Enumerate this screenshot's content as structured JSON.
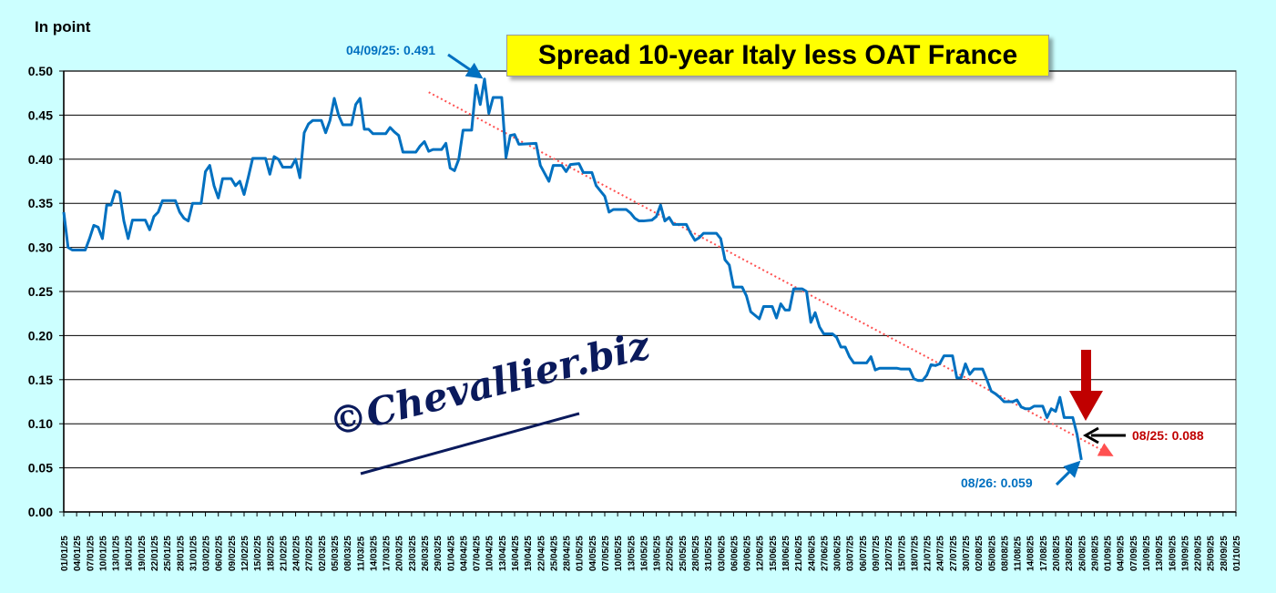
{
  "chart_data": {
    "type": "line",
    "title": "Spread 10-year Italy less OAT France",
    "ylabel": "In point",
    "xlabel": "",
    "ylim": [
      0,
      0.5
    ],
    "yticks": [
      "0.00",
      "0.05",
      "0.10",
      "0.15",
      "0.20",
      "0.25",
      "0.30",
      "0.35",
      "0.40",
      "0.45",
      "0.50"
    ],
    "x_unit": "days since 01/01/25",
    "xlim": [
      0,
      273
    ],
    "grid": true,
    "xtick_labels": [
      "01/01/25",
      "04/01/25",
      "07/01/25",
      "10/01/25",
      "13/01/25",
      "16/01/25",
      "19/01/25",
      "22/01/25",
      "25/01/25",
      "28/01/25",
      "31/01/25",
      "03/02/25",
      "06/02/25",
      "09/02/25",
      "12/02/25",
      "15/02/25",
      "18/02/25",
      "21/02/25",
      "24/02/25",
      "27/02/25",
      "02/03/25",
      "05/03/25",
      "08/03/25",
      "11/03/25",
      "14/03/25",
      "17/03/25",
      "20/03/25",
      "23/03/25",
      "26/03/25",
      "29/03/25",
      "01/04/25",
      "04/04/25",
      "07/04/25",
      "10/04/25",
      "13/04/25",
      "16/04/25",
      "19/04/25",
      "22/04/25",
      "25/04/25",
      "28/04/25",
      "01/05/25",
      "04/05/25",
      "07/05/25",
      "10/05/25",
      "13/05/25",
      "16/05/25",
      "19/05/25",
      "22/05/25",
      "25/05/25",
      "28/05/25",
      "31/05/25",
      "03/06/25",
      "06/06/25",
      "09/06/25",
      "12/06/25",
      "15/06/25",
      "18/06/25",
      "21/06/25",
      "24/06/25",
      "27/06/25",
      "30/06/25",
      "03/07/25",
      "06/07/25",
      "09/07/25",
      "12/07/25",
      "15/07/25",
      "18/07/25",
      "21/07/25",
      "24/07/25",
      "27/07/25",
      "30/07/25",
      "02/08/25",
      "05/08/25",
      "08/08/25",
      "11/08/25",
      "14/08/25",
      "17/08/25",
      "20/08/25",
      "23/08/25",
      "26/08/25",
      "29/08/25",
      "01/09/25",
      "04/09/25",
      "07/09/25",
      "10/09/25",
      "13/09/25",
      "16/09/25",
      "19/09/25",
      "22/09/25",
      "25/09/25",
      "28/09/25",
      "01/10/25"
    ],
    "series": [
      {
        "name": "Spread 10-year Italy less OAT France",
        "color": "#0070c0",
        "points": [
          [
            0,
            0.34
          ],
          [
            1,
            0.3
          ],
          [
            2,
            0.297
          ],
          [
            5,
            0.297
          ],
          [
            6,
            0.31
          ],
          [
            7,
            0.325
          ],
          [
            8,
            0.323
          ],
          [
            9,
            0.31
          ],
          [
            10,
            0.348
          ],
          [
            11,
            0.348
          ],
          [
            12,
            0.364
          ],
          [
            13,
            0.362
          ],
          [
            14,
            0.33
          ],
          [
            15,
            0.31
          ],
          [
            16,
            0.331
          ],
          [
            19,
            0.331
          ],
          [
            20,
            0.32
          ],
          [
            21,
            0.335
          ],
          [
            22,
            0.34
          ],
          [
            23,
            0.353
          ],
          [
            26,
            0.353
          ],
          [
            27,
            0.34
          ],
          [
            28,
            0.333
          ],
          [
            29,
            0.33
          ],
          [
            30,
            0.35
          ],
          [
            32,
            0.35
          ],
          [
            33,
            0.386
          ],
          [
            34,
            0.393
          ],
          [
            35,
            0.37
          ],
          [
            36,
            0.356
          ],
          [
            37,
            0.378
          ],
          [
            39,
            0.378
          ],
          [
            40,
            0.37
          ],
          [
            41,
            0.375
          ],
          [
            42,
            0.36
          ],
          [
            43,
            0.38
          ],
          [
            44,
            0.401
          ],
          [
            47,
            0.401
          ],
          [
            48,
            0.383
          ],
          [
            49,
            0.403
          ],
          [
            50,
            0.4
          ],
          [
            51,
            0.391
          ],
          [
            53,
            0.391
          ],
          [
            54,
            0.4
          ],
          [
            55,
            0.379
          ],
          [
            56,
            0.43
          ],
          [
            57,
            0.44
          ],
          [
            58,
            0.444
          ],
          [
            60,
            0.444
          ],
          [
            61,
            0.43
          ],
          [
            62,
            0.444
          ],
          [
            63,
            0.469
          ],
          [
            64,
            0.45
          ],
          [
            65,
            0.439
          ],
          [
            67,
            0.439
          ],
          [
            68,
            0.462
          ],
          [
            69,
            0.469
          ],
          [
            70,
            0.434
          ],
          [
            71,
            0.434
          ],
          [
            72,
            0.429
          ],
          [
            75,
            0.429
          ],
          [
            76,
            0.436
          ],
          [
            77,
            0.431
          ],
          [
            78,
            0.427
          ],
          [
            79,
            0.408
          ],
          [
            82,
            0.408
          ],
          [
            83,
            0.415
          ],
          [
            84,
            0.42
          ],
          [
            85,
            0.409
          ],
          [
            86,
            0.411
          ],
          [
            88,
            0.411
          ],
          [
            89,
            0.418
          ],
          [
            90,
            0.39
          ],
          [
            91,
            0.387
          ],
          [
            92,
            0.4
          ],
          [
            93,
            0.433
          ],
          [
            95,
            0.433
          ],
          [
            96,
            0.484
          ],
          [
            97,
            0.462
          ],
          [
            98,
            0.491
          ],
          [
            99,
            0.452
          ],
          [
            100,
            0.47
          ],
          [
            102,
            0.47
          ],
          [
            103,
            0.402
          ],
          [
            104,
            0.427
          ],
          [
            105,
            0.428
          ],
          [
            106,
            0.417
          ],
          [
            110,
            0.418
          ],
          [
            111,
            0.393
          ],
          [
            112,
            0.384
          ],
          [
            113,
            0.375
          ],
          [
            114,
            0.393
          ],
          [
            116,
            0.393
          ],
          [
            117,
            0.386
          ],
          [
            118,
            0.394
          ],
          [
            120,
            0.395
          ],
          [
            121,
            0.385
          ],
          [
            123,
            0.385
          ],
          [
            124,
            0.37
          ],
          [
            125,
            0.364
          ],
          [
            126,
            0.358
          ],
          [
            127,
            0.34
          ],
          [
            128,
            0.343
          ],
          [
            131,
            0.343
          ],
          [
            132,
            0.339
          ],
          [
            133,
            0.333
          ],
          [
            134,
            0.33
          ],
          [
            135,
            0.33
          ],
          [
            137,
            0.331
          ],
          [
            138,
            0.335
          ],
          [
            139,
            0.348
          ],
          [
            140,
            0.33
          ],
          [
            141,
            0.334
          ],
          [
            142,
            0.326
          ],
          [
            145,
            0.326
          ],
          [
            146,
            0.316
          ],
          [
            147,
            0.308
          ],
          [
            148,
            0.311
          ],
          [
            149,
            0.316
          ],
          [
            152,
            0.316
          ],
          [
            153,
            0.31
          ],
          [
            154,
            0.286
          ],
          [
            155,
            0.28
          ],
          [
            156,
            0.255
          ],
          [
            158,
            0.255
          ],
          [
            159,
            0.245
          ],
          [
            160,
            0.227
          ],
          [
            162,
            0.219
          ],
          [
            163,
            0.233
          ],
          [
            165,
            0.233
          ],
          [
            166,
            0.22
          ],
          [
            167,
            0.236
          ],
          [
            168,
            0.229
          ],
          [
            169,
            0.229
          ],
          [
            170,
            0.253
          ],
          [
            172,
            0.253
          ],
          [
            173,
            0.25
          ],
          [
            174,
            0.215
          ],
          [
            175,
            0.226
          ],
          [
            176,
            0.21
          ],
          [
            177,
            0.202
          ],
          [
            179,
            0.202
          ],
          [
            180,
            0.198
          ],
          [
            181,
            0.187
          ],
          [
            182,
            0.187
          ],
          [
            183,
            0.176
          ],
          [
            184,
            0.169
          ],
          [
            187,
            0.169
          ],
          [
            188,
            0.176
          ],
          [
            189,
            0.161
          ],
          [
            190,
            0.163
          ],
          [
            194,
            0.163
          ],
          [
            195,
            0.162
          ],
          [
            197,
            0.162
          ],
          [
            198,
            0.151
          ],
          [
            199,
            0.149
          ],
          [
            200,
            0.149
          ],
          [
            201,
            0.155
          ],
          [
            202,
            0.167
          ],
          [
            203,
            0.166
          ],
          [
            204,
            0.168
          ],
          [
            205,
            0.177
          ],
          [
            207,
            0.177
          ],
          [
            208,
            0.152
          ],
          [
            209,
            0.152
          ],
          [
            210,
            0.168
          ],
          [
            211,
            0.156
          ],
          [
            212,
            0.162
          ],
          [
            214,
            0.162
          ],
          [
            215,
            0.15
          ],
          [
            216,
            0.137
          ],
          [
            217,
            0.134
          ],
          [
            218,
            0.13
          ],
          [
            219,
            0.125
          ],
          [
            221,
            0.125
          ],
          [
            222,
            0.127
          ],
          [
            223,
            0.119
          ],
          [
            224,
            0.117
          ],
          [
            225,
            0.117
          ],
          [
            226,
            0.12
          ],
          [
            228,
            0.12
          ],
          [
            229,
            0.107
          ],
          [
            230,
            0.117
          ],
          [
            231,
            0.114
          ],
          [
            232,
            0.13
          ],
          [
            233,
            0.107
          ],
          [
            235,
            0.107
          ],
          [
            236,
            0.088
          ],
          [
            237,
            0.059
          ]
        ]
      }
    ],
    "trendline": {
      "color": "#ff5050",
      "style": "dotted",
      "points": [
        [
          85,
          0.476
        ],
        [
          243,
          0.067
        ]
      ]
    },
    "annotations": {
      "peak": {
        "text": "04/09/25: 0.491",
        "color": "#0070c0",
        "target": [
          98,
          0.491
        ]
      },
      "prev": {
        "text": "08/25: 0.088",
        "color": "#c00000",
        "target": [
          236,
          0.088
        ]
      },
      "last": {
        "text": "08/26: 0.059",
        "color": "#0070c0",
        "target": [
          237,
          0.059
        ]
      }
    },
    "watermark": "©Chevallier.biz"
  }
}
